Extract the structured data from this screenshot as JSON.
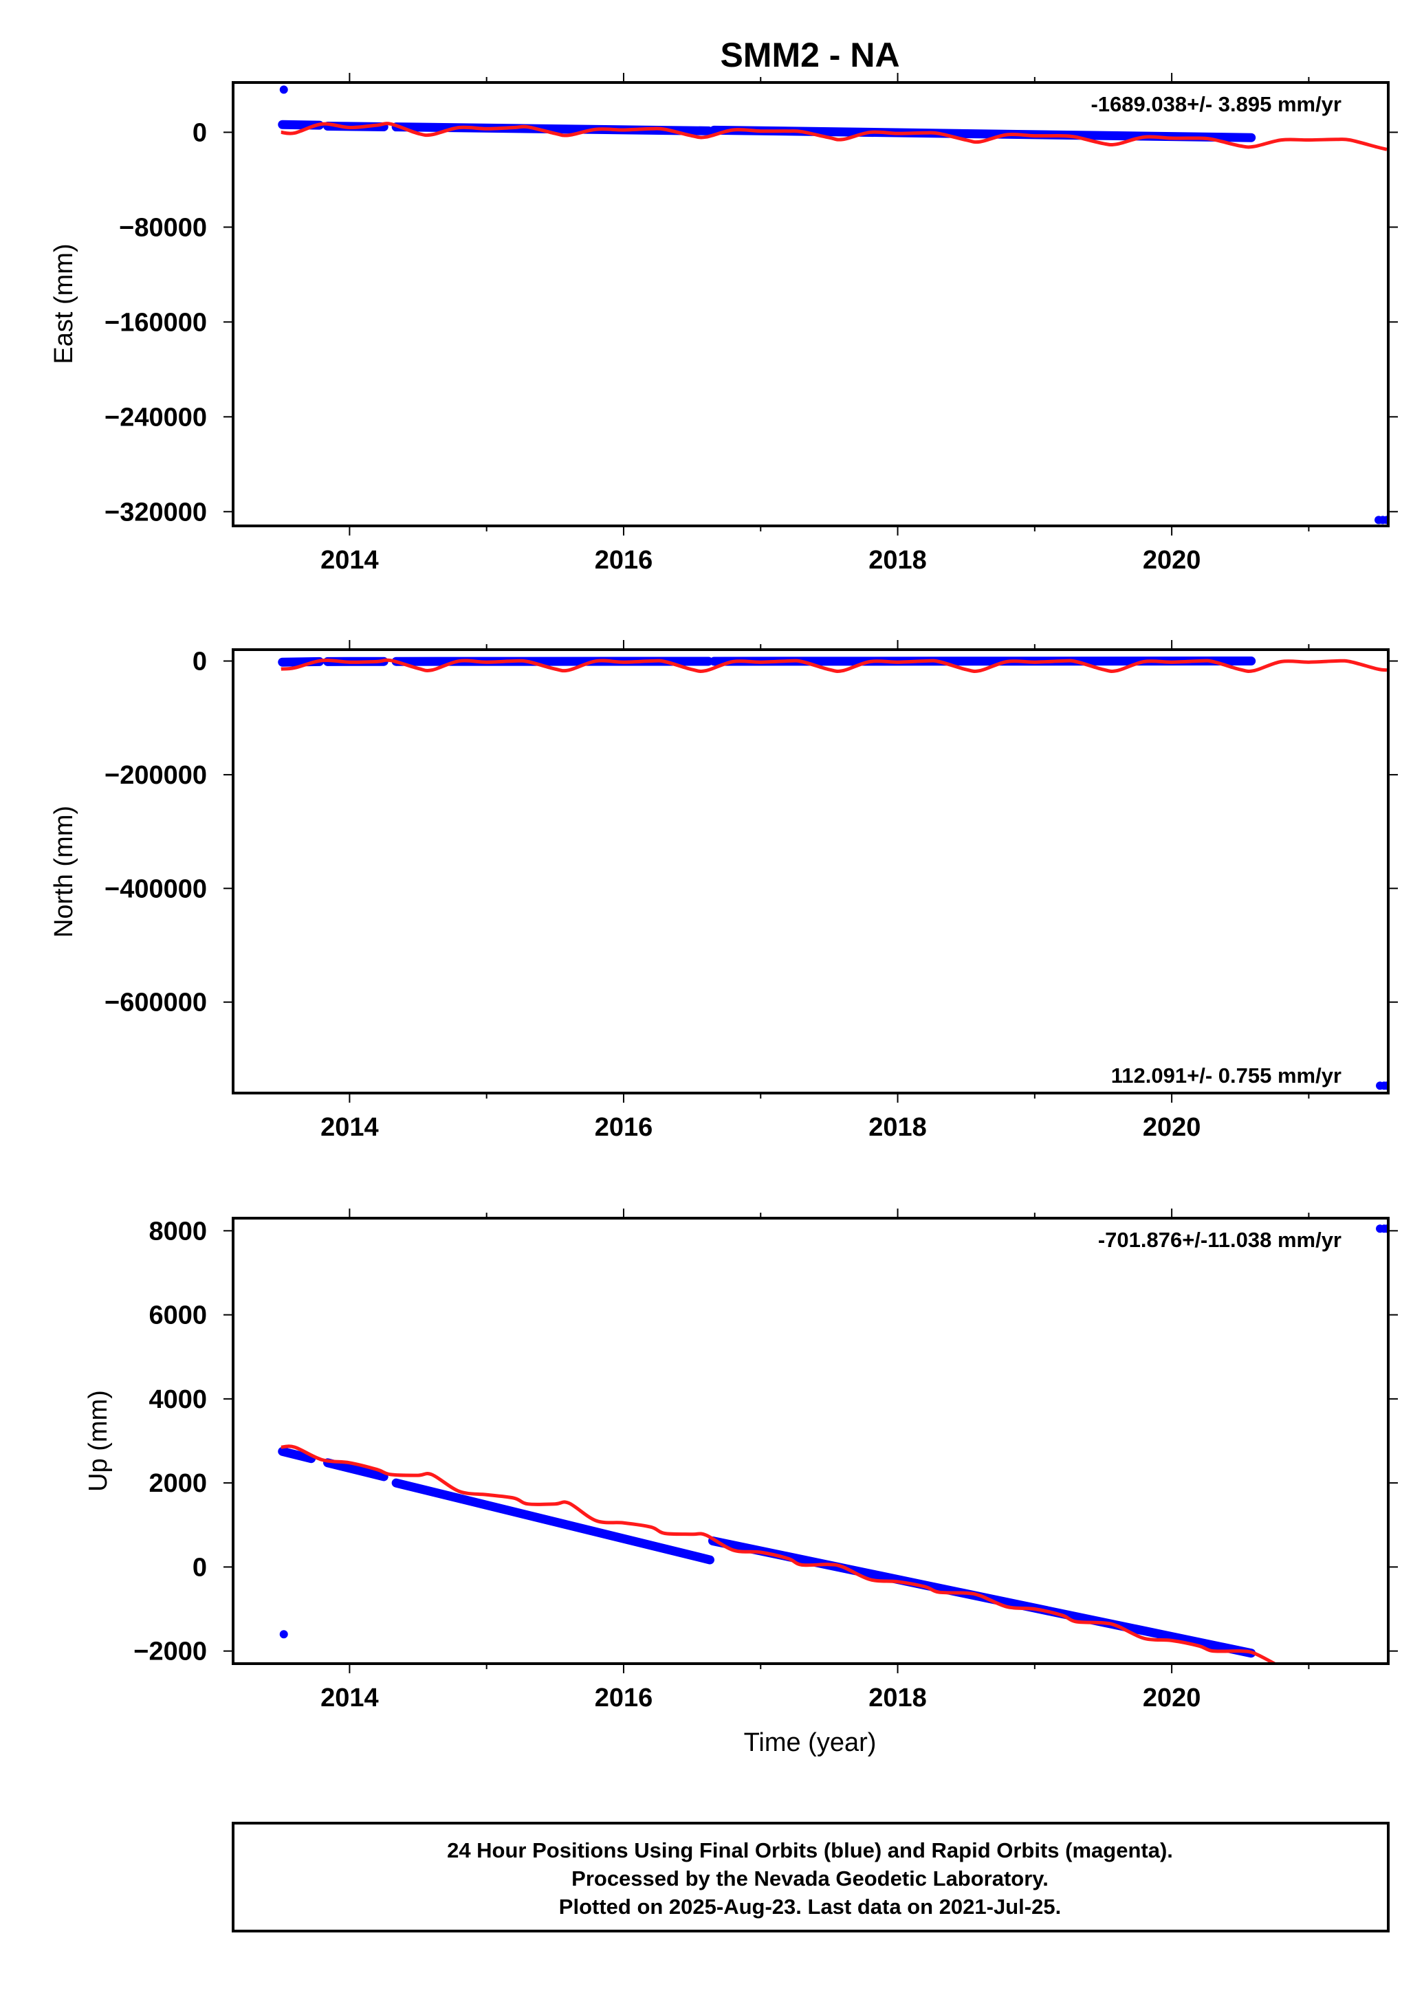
{
  "title": "SMM2 - NA",
  "colors": {
    "final": "#0000ff",
    "rapid": "#ff1a1a",
    "frame": "#000000"
  },
  "footer": {
    "lines": [
      "24 Hour Positions Using Final Orbits (blue) and Rapid Orbits (magenta).",
      "Processed by the Nevada Geodetic Laboratory.",
      "Plotted on 2025-Aug-23. Last data on 2021-Jul-25."
    ]
  },
  "chart_data": [
    {
      "type": "scatter",
      "ylabel": "East (mm)",
      "xlabel": "",
      "xlim": [
        2013.15,
        2021.58
      ],
      "ylim": [
        -332000,
        42000
      ],
      "xticks": [
        2014,
        2016,
        2018,
        2020
      ],
      "yticks": [
        0,
        -80000,
        -160000,
        -240000,
        -320000
      ],
      "ytick_labels": [
        "0",
        "−80000",
        "−160000",
        "−240000",
        "−320000"
      ],
      "rate_label": "-1689.038+/- 3.895 mm/yr",
      "rate_position": "top-right",
      "series": [
        {
          "kind": "final",
          "segments": [
            [
              [
                2013.51,
                6500
              ],
              [
                2013.78,
                6000
              ]
            ],
            [
              [
                2013.84,
                5200
              ],
              [
                2014.25,
                4600
              ]
            ],
            [
              [
                2014.34,
                4500
              ],
              [
                2016.62,
                1200
              ]
            ],
            [
              [
                2016.66,
                1800
              ],
              [
                2020.58,
                -4500
              ]
            ]
          ],
          "points": [
            [
              2013.52,
              36000
            ],
            [
              2021.51,
              -327000
            ],
            [
              2021.54,
              -327000
            ],
            [
              2021.57,
              -327000
            ]
          ]
        },
        {
          "kind": "rapid",
          "line": [
            [
              2013.5,
              0
            ],
            [
              2013.6,
              -600
            ],
            [
              2013.8,
              7000
            ],
            [
              2014.0,
              4000
            ],
            [
              2014.2,
              6000
            ],
            [
              2014.3,
              7000
            ],
            [
              2014.5,
              -1000
            ],
            [
              2014.6,
              -2000
            ],
            [
              2014.8,
              4000
            ],
            [
              2015.0,
              3000
            ],
            [
              2015.2,
              4000
            ],
            [
              2015.3,
              4500
            ],
            [
              2015.5,
              -1000
            ],
            [
              2015.6,
              -2500
            ],
            [
              2015.8,
              2500
            ],
            [
              2016.0,
              2000
            ],
            [
              2016.2,
              3000
            ],
            [
              2016.3,
              2500
            ],
            [
              2016.5,
              -3000
            ],
            [
              2016.6,
              -4000
            ],
            [
              2016.8,
              2000
            ],
            [
              2017.0,
              1000
            ],
            [
              2017.2,
              1000
            ],
            [
              2017.3,
              500
            ],
            [
              2017.5,
              -4500
            ],
            [
              2017.6,
              -6000
            ],
            [
              2017.8,
              0
            ],
            [
              2018.0,
              -1000
            ],
            [
              2018.2,
              -500
            ],
            [
              2018.3,
              -1000
            ],
            [
              2018.5,
              -6500
            ],
            [
              2018.6,
              -8000
            ],
            [
              2018.8,
              -2000
            ],
            [
              2019.0,
              -3000
            ],
            [
              2019.2,
              -3000
            ],
            [
              2019.3,
              -4000
            ],
            [
              2019.5,
              -9500
            ],
            [
              2019.6,
              -10000
            ],
            [
              2019.8,
              -4000
            ],
            [
              2020.0,
              -5000
            ],
            [
              2020.2,
              -5000
            ],
            [
              2020.3,
              -6000
            ],
            [
              2020.5,
              -11500
            ],
            [
              2020.6,
              -12000
            ],
            [
              2020.8,
              -6500
            ],
            [
              2021.0,
              -6500
            ],
            [
              2021.2,
              -6000
            ],
            [
              2021.3,
              -6500
            ],
            [
              2021.5,
              -12500
            ],
            [
              2021.57,
              -14500
            ]
          ]
        }
      ]
    },
    {
      "type": "scatter",
      "ylabel": "North (mm)",
      "xlabel": "",
      "xlim": [
        2013.15,
        2021.58
      ],
      "ylim": [
        -760000,
        20000
      ],
      "xticks": [
        2014,
        2016,
        2018,
        2020
      ],
      "yticks": [
        0,
        -200000,
        -400000,
        -600000
      ],
      "ytick_labels": [
        "0",
        "−200000",
        "−400000",
        "−600000"
      ],
      "rate_label": "112.091+/- 0.755 mm/yr",
      "rate_position": "bottom-right",
      "series": [
        {
          "kind": "final",
          "segments": [
            [
              [
                2013.51,
                -2000
              ],
              [
                2013.78,
                -1000
              ]
            ],
            [
              [
                2013.84,
                -1000
              ],
              [
                2014.25,
                -800
              ]
            ],
            [
              [
                2014.34,
                -800
              ],
              [
                2016.62,
                -500
              ]
            ],
            [
              [
                2016.66,
                -500
              ],
              [
                2020.58,
                0
              ]
            ]
          ],
          "points": [
            [
              2021.52,
              -747000
            ],
            [
              2021.55,
              -747000
            ],
            [
              2021.57,
              -747000
            ]
          ]
        },
        {
          "kind": "rapid",
          "line": [
            [
              2013.5,
              -14000
            ],
            [
              2013.6,
              -12000
            ],
            [
              2013.8,
              1000
            ],
            [
              2014.0,
              -2000
            ],
            [
              2014.2,
              -1000
            ],
            [
              2014.3,
              1000
            ],
            [
              2014.5,
              -13000
            ],
            [
              2014.6,
              -16000
            ],
            [
              2014.8,
              0
            ],
            [
              2015.0,
              -2000
            ],
            [
              2015.2,
              0
            ],
            [
              2015.3,
              -1000
            ],
            [
              2015.5,
              -14000
            ],
            [
              2015.6,
              -16000
            ],
            [
              2015.8,
              0
            ],
            [
              2016.0,
              -2000
            ],
            [
              2016.2,
              0
            ],
            [
              2016.3,
              -1000
            ],
            [
              2016.5,
              -15000
            ],
            [
              2016.6,
              -17000
            ],
            [
              2016.8,
              -1000
            ],
            [
              2017.0,
              -2000
            ],
            [
              2017.2,
              0
            ],
            [
              2017.3,
              -1000
            ],
            [
              2017.5,
              -15000
            ],
            [
              2017.6,
              -17000
            ],
            [
              2017.8,
              -1000
            ],
            [
              2018.0,
              -2000
            ],
            [
              2018.2,
              0
            ],
            [
              2018.3,
              -1000
            ],
            [
              2018.5,
              -15000
            ],
            [
              2018.6,
              -17000
            ],
            [
              2018.8,
              -1000
            ],
            [
              2019.0,
              -2000
            ],
            [
              2019.2,
              0
            ],
            [
              2019.3,
              -1000
            ],
            [
              2019.5,
              -15000
            ],
            [
              2019.6,
              -17000
            ],
            [
              2019.8,
              -1000
            ],
            [
              2020.0,
              -2000
            ],
            [
              2020.2,
              0
            ],
            [
              2020.3,
              -1000
            ],
            [
              2020.5,
              -15000
            ],
            [
              2020.6,
              -17000
            ],
            [
              2020.8,
              -1000
            ],
            [
              2021.0,
              -2000
            ],
            [
              2021.2,
              0
            ],
            [
              2021.3,
              -1000
            ],
            [
              2021.5,
              -14000
            ],
            [
              2021.57,
              -16000
            ]
          ]
        }
      ]
    },
    {
      "type": "scatter",
      "ylabel": "Up (mm)",
      "xlabel": "Time (year)",
      "xlim": [
        2013.15,
        2021.58
      ],
      "ylim": [
        -2300,
        8300
      ],
      "xticks": [
        2014,
        2016,
        2018,
        2020
      ],
      "yticks": [
        8000,
        6000,
        4000,
        2000,
        0,
        -2000
      ],
      "ytick_labels": [
        "8000",
        "6000",
        "4000",
        "2000",
        "0",
        "−2000"
      ],
      "rate_label": "-701.876+/-11.038 mm/yr",
      "rate_position": "top-right",
      "series": [
        {
          "kind": "final",
          "segments": [
            [
              [
                2013.51,
                2750
              ],
              [
                2013.72,
                2580
              ]
            ],
            [
              [
                2013.84,
                2480
              ],
              [
                2014.25,
                2150
              ]
            ],
            [
              [
                2014.34,
                2000
              ],
              [
                2016.63,
                170
              ]
            ],
            [
              [
                2016.65,
                620
              ],
              [
                2020.58,
                -2050
              ]
            ]
          ],
          "points": [
            [
              2013.52,
              -1600
            ],
            [
              2021.52,
              8050
            ],
            [
              2021.55,
              8050
            ],
            [
              2021.57,
              8050
            ]
          ]
        },
        {
          "kind": "rapid",
          "line": [
            [
              2013.5,
              2850
            ],
            [
              2013.6,
              2850
            ],
            [
              2013.8,
              2550
            ],
            [
              2014.0,
              2480
            ],
            [
              2014.2,
              2320
            ],
            [
              2014.3,
              2200
            ],
            [
              2014.5,
              2180
            ],
            [
              2014.6,
              2200
            ],
            [
              2014.8,
              1800
            ],
            [
              2015.0,
              1720
            ],
            [
              2015.2,
              1640
            ],
            [
              2015.3,
              1500
            ],
            [
              2015.5,
              1500
            ],
            [
              2015.6,
              1520
            ],
            [
              2015.8,
              1100
            ],
            [
              2016.0,
              1050
            ],
            [
              2016.2,
              950
            ],
            [
              2016.3,
              800
            ],
            [
              2016.5,
              780
            ],
            [
              2016.6,
              760
            ],
            [
              2016.8,
              400
            ],
            [
              2017.0,
              350
            ],
            [
              2017.2,
              200
            ],
            [
              2017.3,
              50
            ],
            [
              2017.5,
              60
            ],
            [
              2017.6,
              0
            ],
            [
              2017.8,
              -300
            ],
            [
              2018.0,
              -350
            ],
            [
              2018.2,
              -470
            ],
            [
              2018.3,
              -600
            ],
            [
              2018.5,
              -620
            ],
            [
              2018.6,
              -680
            ],
            [
              2018.8,
              -950
            ],
            [
              2019.0,
              -1000
            ],
            [
              2019.2,
              -1150
            ],
            [
              2019.3,
              -1300
            ],
            [
              2019.5,
              -1330
            ],
            [
              2019.6,
              -1400
            ],
            [
              2019.8,
              -1700
            ],
            [
              2020.0,
              -1750
            ],
            [
              2020.2,
              -1880
            ],
            [
              2020.3,
              -2000
            ],
            [
              2020.5,
              -2000
            ],
            [
              2020.6,
              -2050
            ],
            [
              2020.75,
              -2300
            ]
          ]
        }
      ]
    }
  ]
}
